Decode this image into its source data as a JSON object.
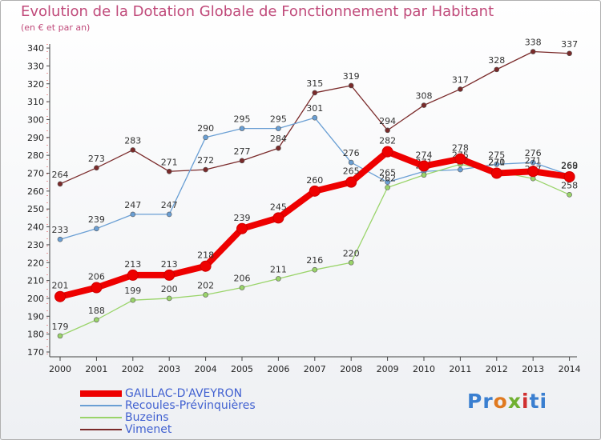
{
  "title": "Evolution de la Dotation Globale de Fonctionnement par Habitant",
  "subtitle": "(en € et par an)",
  "logo": {
    "text": "Proxiti"
  },
  "chart_data": {
    "type": "line",
    "title": "Evolution de la Dotation Globale de Fonctionnement par Habitant",
    "subtitle": "(en € et par an)",
    "xlabel": "",
    "ylabel": "",
    "x": [
      "2000",
      "2001",
      "2002",
      "2003",
      "2004",
      "2005",
      "2006",
      "2007",
      "2008",
      "2009",
      "2010",
      "2011",
      "2012",
      "2013",
      "2014"
    ],
    "ylim": [
      170,
      340
    ],
    "yticks": [
      170,
      180,
      190,
      200,
      210,
      220,
      230,
      240,
      250,
      260,
      270,
      280,
      290,
      300,
      310,
      320,
      330,
      340
    ],
    "grid": false,
    "legend_position": "bottom-left",
    "series": [
      {
        "name": "GAILLAC-D'AVEYRON",
        "color": "#ee0000",
        "values": [
          201,
          206,
          213,
          213,
          218,
          239,
          245,
          260,
          265,
          282,
          274,
          278,
          270,
          271,
          268
        ]
      },
      {
        "name": "Recoules-Prévinquières",
        "color": "#6a9fd4",
        "values": [
          233,
          239,
          247,
          247,
          290,
          295,
          295,
          301,
          276,
          265,
          271,
          272,
          275,
          276,
          269
        ]
      },
      {
        "name": "Buzeins",
        "color": "#9ad46a",
        "values": [
          179,
          188,
          199,
          200,
          202,
          206,
          211,
          216,
          220,
          262,
          269,
          275,
          271,
          267,
          258
        ]
      },
      {
        "name": "Vimenet",
        "color": "#7a2a2a",
        "values": [
          264,
          273,
          283,
          271,
          272,
          277,
          284,
          315,
          319,
          294,
          308,
          317,
          328,
          338,
          337
        ]
      }
    ]
  }
}
